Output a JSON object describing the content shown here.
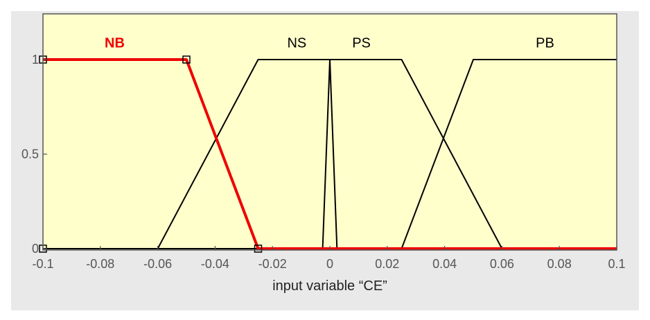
{
  "chart_data": {
    "type": "line",
    "xlabel": "input variable “CE”",
    "ylabel": "",
    "xlim": [
      -0.1,
      0.1
    ],
    "ylim": [
      0,
      1
    ],
    "grid": false,
    "x_ticks": [
      -0.1,
      -0.08,
      -0.06,
      -0.04,
      -0.02,
      0,
      0.02,
      0.04,
      0.06,
      0.08,
      0.1
    ],
    "x_tick_labels": [
      "-0.1",
      "-0.08",
      "-0.06",
      "-0.04",
      "-0.02",
      "0",
      "0.02",
      "0.04",
      "0.06",
      "0.08",
      "0.1"
    ],
    "y_ticks": [
      0,
      0.5,
      1
    ],
    "y_tick_labels": [
      "0",
      "0.5",
      "1"
    ],
    "series": [
      {
        "name": "NB",
        "color": "#ee0000",
        "highlighted": true,
        "points": [
          [
            -0.1,
            1
          ],
          [
            -0.05,
            1
          ],
          [
            -0.025,
            0
          ],
          [
            0.1,
            0
          ]
        ],
        "label_pos": [
          -0.075,
          1.09
        ]
      },
      {
        "name": "NS",
        "color": "#000000",
        "highlighted": false,
        "points": [
          [
            -0.1,
            0
          ],
          [
            -0.06,
            0
          ],
          [
            -0.025,
            1
          ],
          [
            0,
            1
          ],
          [
            0.0025,
            0
          ],
          [
            0.1,
            0
          ]
        ],
        "label_pos": [
          -0.0115,
          1.09
        ]
      },
      {
        "name": "PS",
        "color": "#000000",
        "highlighted": false,
        "points": [
          [
            -0.1,
            0
          ],
          [
            -0.0025,
            0
          ],
          [
            0,
            1
          ],
          [
            0.025,
            1
          ],
          [
            0.06,
            0
          ],
          [
            0.1,
            0
          ]
        ],
        "label_pos": [
          0.011,
          1.09
        ]
      },
      {
        "name": "PB",
        "color": "#000000",
        "highlighted": false,
        "points": [
          [
            -0.1,
            0
          ],
          [
            0.025,
            0
          ],
          [
            0.05,
            1
          ],
          [
            0.1,
            1
          ]
        ],
        "label_pos": [
          0.075,
          1.09
        ]
      }
    ],
    "markers": [
      [
        -0.1,
        1
      ],
      [
        -0.05,
        1
      ],
      [
        -0.025,
        0
      ],
      [
        -0.1,
        0
      ]
    ]
  },
  "colors": {
    "plot_background": "#ffffcc",
    "frame_background": "#e9e9e9",
    "axis": "#555555"
  }
}
